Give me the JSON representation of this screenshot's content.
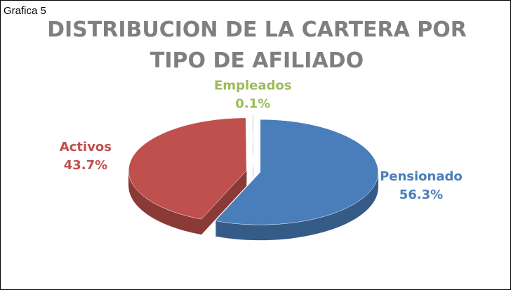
{
  "caption": "Grafica 5",
  "chart_data": {
    "type": "pie",
    "title": "DISTRIBUCION DE LA CARTERA POR TIPO DE AFILIADO",
    "categories": [
      "Pensionado",
      "Activos",
      "Empleados"
    ],
    "values": [
      56.3,
      43.7,
      0.1
    ],
    "value_labels": [
      "56.3%",
      "43.7%",
      "0.1%"
    ],
    "colors": [
      "#4a7ebb",
      "#c0504d",
      "#9bbb59"
    ]
  }
}
